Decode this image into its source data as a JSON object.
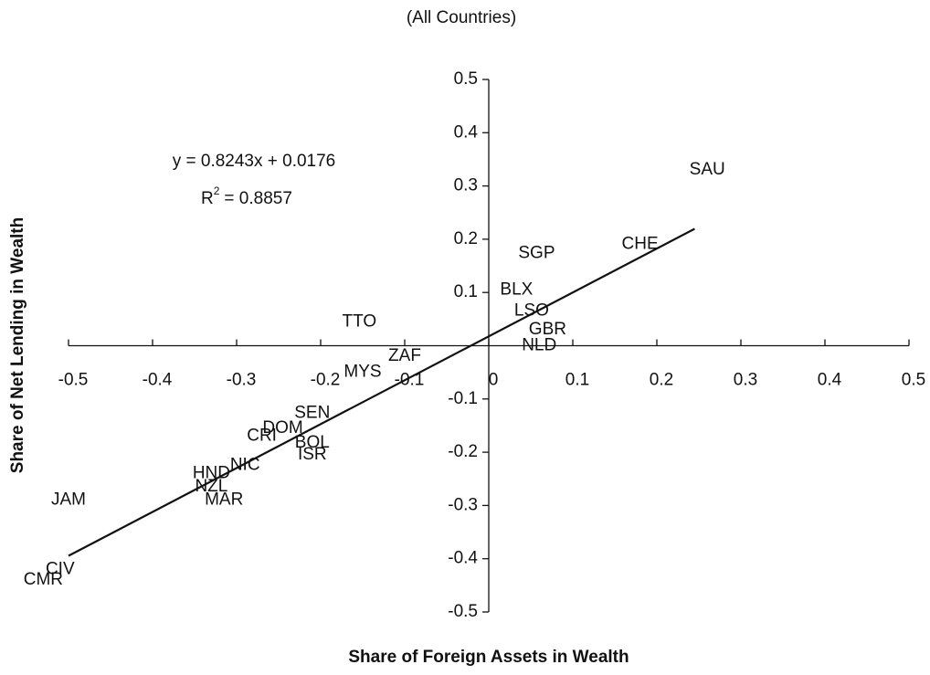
{
  "chart_data": {
    "type": "scatter",
    "title": "(All Countries)",
    "x_label": "Share of Foreign Assets in Wealth",
    "y_label": "Share of Net Lending in Wealth",
    "xlim": [
      -0.5,
      0.5
    ],
    "ylim": [
      -0.5,
      0.5
    ],
    "xticks": [
      -0.5,
      -0.4,
      -0.3,
      -0.2,
      -0.1,
      0,
      0.1,
      0.2,
      0.3,
      0.4,
      0.5
    ],
    "yticks": [
      -0.5,
      -0.4,
      -0.3,
      -0.2,
      -0.1,
      0.1,
      0.2,
      0.3,
      0.4,
      0.5
    ],
    "color": "#111111",
    "series": [
      {
        "labels": [
          "SAU",
          "SGP",
          "CHE",
          "BLX",
          "LSO",
          "GBR",
          "NLD",
          "TTO",
          "ZAF",
          "MYS",
          "SEN",
          "DOM",
          "CRI",
          "BOL",
          "ISR",
          "NIC",
          "HND",
          "NZL",
          "MAR",
          "JAM",
          "CIV",
          "CMR"
        ],
        "x": [
          0.26,
          0.057,
          0.18,
          0.033,
          0.051,
          0.07,
          0.06,
          -0.154,
          -0.1,
          -0.15,
          -0.21,
          -0.245,
          -0.27,
          -0.21,
          -0.21,
          -0.29,
          -0.33,
          -0.33,
          -0.315,
          -0.5,
          -0.51,
          -0.53
        ],
        "values": [
          0.33,
          0.173,
          0.19,
          0.105,
          0.065,
          0.03,
          0.0,
          0.045,
          -0.02,
          -0.05,
          -0.127,
          -0.155,
          -0.17,
          -0.183,
          -0.205,
          -0.225,
          -0.24,
          -0.265,
          -0.29,
          -0.29,
          -0.42,
          -0.44
        ]
      }
    ],
    "trendline": {
      "equation": "y = 0.8243x + 0.0176",
      "slope": 0.8243,
      "intercept": 0.0176,
      "x": [
        -0.5,
        0.245
      ],
      "r_squared": {
        "symbol": "R",
        "superscript": "2",
        "text": "= 0.8857"
      }
    }
  }
}
